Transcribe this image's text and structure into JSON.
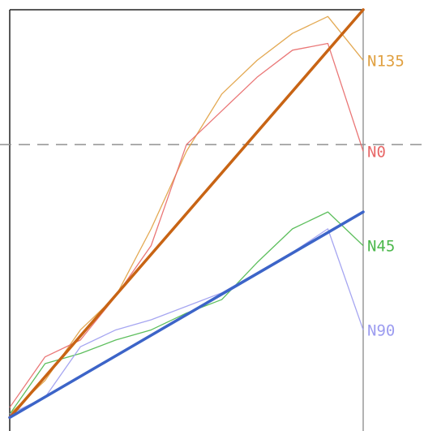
{
  "chart_data": {
    "type": "line",
    "title": "",
    "xlabel": "",
    "ylabel": "",
    "grid": false,
    "legend": "none",
    "x": [
      0,
      1,
      2,
      3,
      4,
      5,
      6,
      7,
      8,
      9
    ],
    "xlim": [
      0,
      10
    ],
    "ylim": [
      -0.05,
      1.2
    ],
    "reference_line": {
      "y": 0.8,
      "style": "dashed",
      "color": "#909090"
    },
    "series": [
      {
        "name": "N135",
        "color": "#e0a040",
        "values": [
          0.0,
          0.1,
          0.25,
          0.35,
          0.55,
          0.78,
          0.95,
          1.05,
          1.13,
          1.18
        ],
        "end_label_y": 1.05
      },
      {
        "name": "N0",
        "color": "#e86868",
        "values": [
          0.02,
          0.17,
          0.22,
          0.35,
          0.5,
          0.8,
          0.9,
          1.0,
          1.08,
          1.1
        ],
        "end_label_y": 0.78
      },
      {
        "name": "N45",
        "color": "#4cb84c",
        "values": [
          0.0,
          0.15,
          0.18,
          0.22,
          0.25,
          0.3,
          0.34,
          0.45,
          0.55,
          0.6
        ],
        "end_label_y": 0.5
      },
      {
        "name": "N90",
        "color": "#9c9cf0",
        "values": [
          0.0,
          0.05,
          0.2,
          0.25,
          0.28,
          0.32,
          0.36,
          0.42,
          0.48,
          0.55
        ],
        "end_label_y": 0.25
      }
    ],
    "fits": [
      {
        "color": "#c86414",
        "start": [
          0,
          -0.01
        ],
        "end": [
          10,
          1.2
        ]
      },
      {
        "color": "#3c64c8",
        "start": [
          0,
          -0.01
        ],
        "end": [
          10,
          0.6
        ]
      }
    ]
  }
}
